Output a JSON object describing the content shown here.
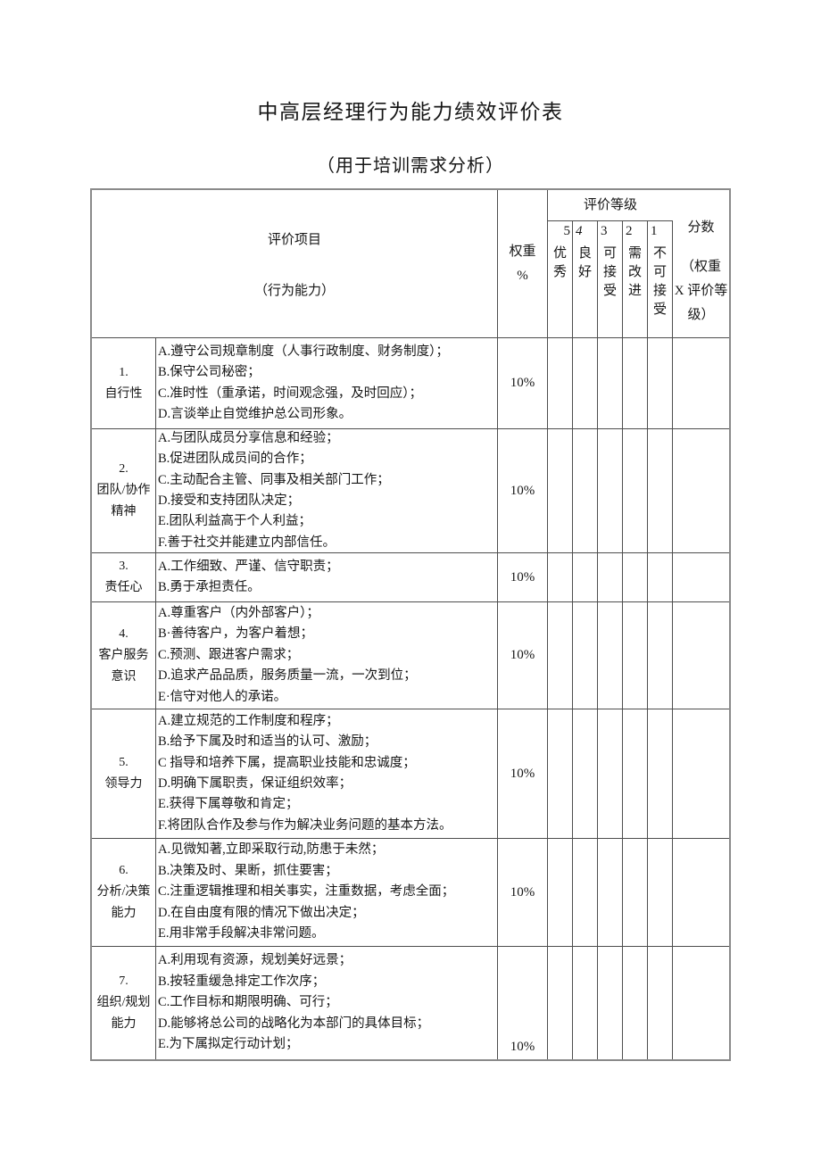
{
  "page": {
    "title": "中高层经理行为能力绩效评价表",
    "subtitle": "（用于培训需求分析）"
  },
  "table": {
    "header": {
      "item_line1": "评价项目",
      "item_line2": "（行为能力）",
      "weight_line1": "权重",
      "weight_line2": "%",
      "rating_group_label": "评价等级",
      "ratings": [
        {
          "num": "5",
          "label": "优秀"
        },
        {
          "num": "4",
          "label": "良好"
        },
        {
          "num": "3",
          "label": "可接受"
        },
        {
          "num": "2",
          "label": "需改进"
        },
        {
          "num": "1",
          "label": "不可接受"
        }
      ],
      "score_line1": "分数",
      "score_sub_lines": [
        "（权重",
        "X 评价等",
        "级）"
      ]
    },
    "rows": [
      {
        "num": "1.",
        "name_lines": [
          "自行性"
        ],
        "items": [
          "A.遵守公司规章制度（人事行政制度、财务制度）；",
          "B.保守公司秘密；",
          "C.准时性（重承诺，时间观念强，及时回应）；",
          "D.言谈举止自觉维护总公司形象。"
        ],
        "weight": "10%"
      },
      {
        "num": "2.",
        "name_lines": [
          "团队/协作",
          "精神"
        ],
        "items": [
          "A.与团队成员分享信息和经验；",
          "B.促进团队成员间的合作；",
          "C.主动配合主管、同事及相关部门工作；",
          "D.接受和支持团队决定；",
          "E.团队利益高于个人利益；",
          "F.善于社交并能建立内部信任。"
        ],
        "weight": "10%"
      },
      {
        "num": "3.",
        "name_lines": [
          "责任心"
        ],
        "items": [
          "A.工作细致、严谨、信守职责；",
          "B.勇于承担责任。"
        ],
        "weight": "10%"
      },
      {
        "num": "4.",
        "name_lines": [
          "客户服务",
          "意识"
        ],
        "items": [
          "A.尊重客户（内外部客户）；",
          "B·善待客户，为客户着想；",
          "C.预测、跟进客户需求；",
          "D.追求产品品质，服务质量一流，一次到位；",
          "E·信守对他人的承诺。"
        ],
        "weight": "10%"
      },
      {
        "num": "5.",
        "name_lines": [
          "领导力"
        ],
        "items": [
          "A.建立规范的工作制度和程序；",
          "B.给予下属及时和适当的认可、激励；",
          "C 指导和培养下属，提高职业技能和忠诚度；",
          "D.明确下属职责，保证组织效率；",
          "E.获得下属尊敬和肯定；",
          "F.将团队合作及参与作为解决业务问题的基本方法。"
        ],
        "weight": "10%"
      },
      {
        "num": "6.",
        "name_lines": [
          "分析/决策",
          "能力"
        ],
        "items": [
          "A.见微知著,立即采取行动,防患于未然；",
          "B.决策及时、果断，抓住要害；",
          "C.注重逻辑推理和相关事实，注重数据，考虑全面；",
          "D.在自由度有限的情况下做出决定；",
          "E.用非常手段解决非常问题。"
        ],
        "weight": "10%"
      },
      {
        "num": "7.",
        "name_lines": [
          "组织/规划",
          "能力"
        ],
        "items": [
          "A.利用现有资源，规划美好远景；",
          "B.按轻重缓急排定工作次序；",
          "C.工作目标和期限明确、可行；",
          "D.能够将总公司的战略化为本部门的具体目标；",
          "E.为下属拟定行动计划；"
        ],
        "weight": "10%"
      }
    ]
  }
}
